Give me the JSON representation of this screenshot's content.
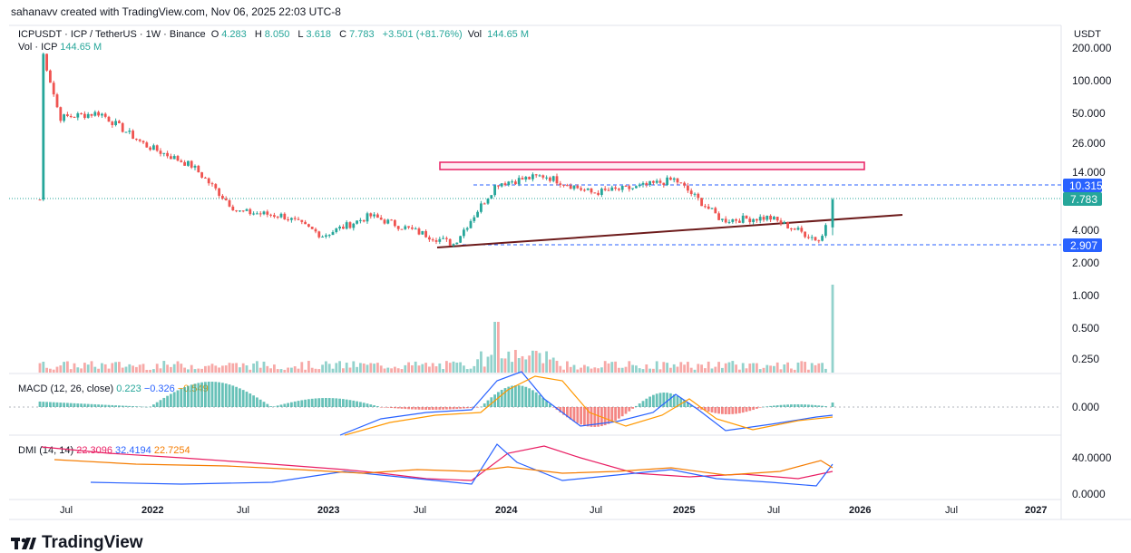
{
  "header": {
    "credit": "sahanavv created with TradingView.com, Nov 06, 2025 22:03 UTC-8"
  },
  "legend": {
    "symbol": "ICPUSDT · ICP / TetherUS · 1W · Binance",
    "open_label": "O",
    "open": "4.283",
    "high_label": "H",
    "high": "8.050",
    "low_label": "L",
    "low": "3.618",
    "close_label": "C",
    "close": "7.783",
    "change": "+3.501 (+81.76%)",
    "vol_label": "Vol",
    "vol": "144.65 M"
  },
  "volume_legend": {
    "label": "Vol · ICP",
    "value": "144.65 M"
  },
  "currency": "USDT",
  "price_axis": {
    "ticks": [
      "200.000",
      "100.000",
      "50.000",
      "26.000",
      "14.000",
      "4.000",
      "2.000",
      "1.000",
      "0.500",
      "0.250"
    ]
  },
  "price_badges": {
    "upper": "10.315",
    "current": "7.783",
    "lower": "2.907"
  },
  "macd": {
    "label": "MACD (12, 26, close)",
    "hist": "0.223",
    "macd": "−0.326",
    "signal": "−0.549",
    "axis_tick": "0.000"
  },
  "dmi": {
    "label": "DMI (14, 14)",
    "plus": "22.3096",
    "minus": "32.4194",
    "adx": "22.7254",
    "axis_ticks": [
      "40.0000",
      "0.0000"
    ]
  },
  "time_axis": [
    "Jul",
    "2022",
    "Jul",
    "2023",
    "Jul",
    "2024",
    "Jul",
    "2025",
    "Jul",
    "2026",
    "Jul",
    "2027"
  ],
  "footer": {
    "brand": "TradingView"
  },
  "colors": {
    "up": "#26a69a",
    "down": "#ef5350",
    "macd_line": "#2962ff",
    "signal_line": "#ff9800",
    "dmi_plus": "#e91e63",
    "dmi_minus": "#2962ff",
    "adx": "#f57c00",
    "resistance_box": "#e91e63",
    "trendline": "#6d1b1b",
    "badge_blue": "#2962ff"
  },
  "chart_data": {
    "type": "candlestick",
    "symbol": "ICPUSDT",
    "interval": "1W",
    "scale": "log",
    "ylim": [
      0.2,
      230
    ],
    "x": [
      "2021-05",
      "2021-07",
      "2021-10",
      "2022-01",
      "2022-04",
      "2022-07",
      "2022-10",
      "2023-01",
      "2023-04",
      "2023-07",
      "2023-10",
      "2024-01",
      "2024-04",
      "2024-07",
      "2024-10",
      "2025-01",
      "2025-04",
      "2025-07",
      "2025-10",
      "2025-11"
    ],
    "close": [
      200,
      45,
      50,
      25,
      16,
      6,
      5.5,
      3.6,
      5.5,
      4,
      3,
      11,
      13,
      9,
      10,
      12,
      5,
      5.3,
      3.2,
      7.783
    ],
    "annotations": {
      "resistance_zone": [
        12.5,
        14.8
      ],
      "horizontal_levels": [
        10.315,
        2.907
      ],
      "ascending_trendline": {
        "from": [
          "2023-08",
          3.0
        ],
        "to": [
          "2026-02",
          5.6
        ]
      }
    },
    "last_bar": {
      "open": 4.283,
      "high": 8.05,
      "low": 3.618,
      "close": 7.783,
      "volume": "144.65M"
    }
  }
}
